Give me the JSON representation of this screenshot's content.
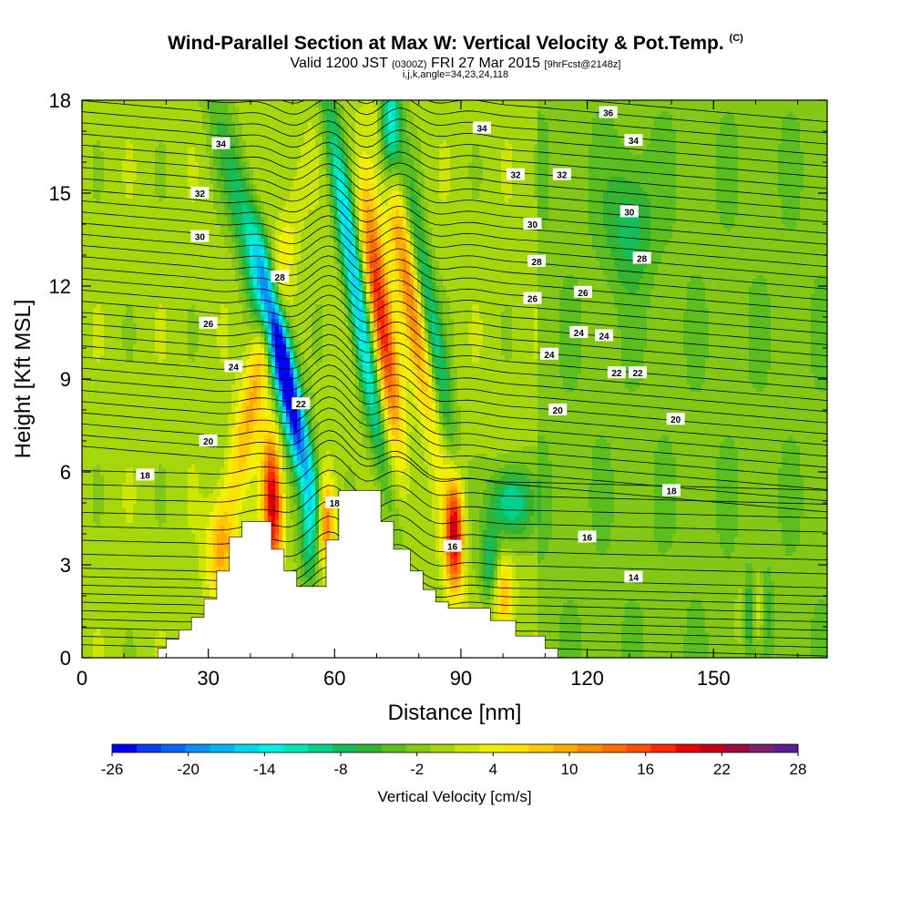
{
  "header": {
    "title": "Wind-Parallel Section at Max W: Vertical Velocity & Pot.Temp.",
    "title_mark": "(C)",
    "valid_prefix": "Valid 1200 JST",
    "valid_utc": "(0300Z)",
    "valid_date": "FRI 27 Mar 2015",
    "forecast_tag": "[9hrFcst@2148z]",
    "grid_info": "i,j,k,angle=34,23,24,118"
  },
  "chart_data": {
    "type": "heatmap",
    "xlabel": "Distance [nm]",
    "ylabel": "Height [Kft MSL]",
    "xlim": [
      0,
      177
    ],
    "ylim": [
      0,
      18
    ],
    "x_ticks": [
      0,
      30,
      60,
      90,
      120,
      150
    ],
    "y_ticks": [
      0,
      3,
      6,
      9,
      12,
      15,
      18
    ],
    "colorbar": {
      "title": "Vertical Velocity [cm/s]",
      "min": -26,
      "max": 28,
      "step": 2,
      "tick_labels": [
        "-26",
        "-20",
        "-14",
        "-8",
        "-2",
        "4",
        "10",
        "16",
        "22",
        "28"
      ],
      "colors": [
        "#0000f5",
        "#0a3cf5",
        "#0a64f5",
        "#0a91f5",
        "#00b4f0",
        "#00d7f0",
        "#00f0e6",
        "#00e6b4",
        "#00d28c",
        "#14be5a",
        "#32b432",
        "#5abe1e",
        "#82c814",
        "#a5d70a",
        "#cde600",
        "#f0f000",
        "#ffe100",
        "#ffc800",
        "#ffaa00",
        "#ff8c00",
        "#ff6e00",
        "#ff5000",
        "#ff2800",
        "#eb0000",
        "#c80014",
        "#a00a3c",
        "#821e6e",
        "#5a1e91"
      ]
    },
    "velocity_bands": [
      {
        "x": 0,
        "height_kft": 0,
        "w": 0
      },
      {
        "x": 46,
        "height_kft": 5,
        "w": 20
      },
      {
        "x": 48.5,
        "height_kft": 9,
        "w": -24
      },
      {
        "x": 58,
        "height_kft": 4,
        "w": 20
      },
      {
        "x": 72,
        "height_kft": 11,
        "w": 20
      },
      {
        "x": 72,
        "height_kft": 17,
        "w": -16
      },
      {
        "x": 88,
        "height_kft": 4,
        "w": 22
      },
      {
        "x": 102,
        "height_kft": 5,
        "w": -12
      }
    ],
    "terrain": [
      [
        0,
        0
      ],
      [
        18,
        0
      ],
      [
        18,
        0.3
      ],
      [
        20,
        0.3
      ],
      [
        20,
        0.6
      ],
      [
        23,
        0.6
      ],
      [
        23,
        0.9
      ],
      [
        26,
        0.9
      ],
      [
        26,
        1.3
      ],
      [
        29,
        1.3
      ],
      [
        29,
        1.9
      ],
      [
        32,
        1.9
      ],
      [
        32,
        2.8
      ],
      [
        35,
        2.8
      ],
      [
        35,
        3.9
      ],
      [
        38,
        3.9
      ],
      [
        38,
        4.4
      ],
      [
        45,
        4.4
      ],
      [
        45,
        3.5
      ],
      [
        48,
        3.5
      ],
      [
        48,
        2.8
      ],
      [
        51,
        2.8
      ],
      [
        51,
        2.3
      ],
      [
        58,
        2.3
      ],
      [
        58,
        3.8
      ],
      [
        61,
        3.8
      ],
      [
        61,
        5.4
      ],
      [
        71,
        5.4
      ],
      [
        71,
        4.4
      ],
      [
        74,
        4.4
      ],
      [
        74,
        3.5
      ],
      [
        78,
        3.5
      ],
      [
        78,
        2.8
      ],
      [
        81,
        2.8
      ],
      [
        81,
        2.2
      ],
      [
        84,
        2.2
      ],
      [
        84,
        1.8
      ],
      [
        87,
        1.8
      ],
      [
        87,
        1.6
      ],
      [
        97,
        1.6
      ],
      [
        97,
        1.2
      ],
      [
        103,
        1.2
      ],
      [
        103,
        0.7
      ],
      [
        110,
        0.7
      ],
      [
        110,
        0.3
      ],
      [
        113,
        0.3
      ],
      [
        113,
        0
      ],
      [
        177,
        0
      ]
    ],
    "isentrope_labels": [
      "14",
      "16",
      "18",
      "20",
      "22",
      "24",
      "26",
      "28",
      "30",
      "32",
      "34",
      "36"
    ]
  }
}
